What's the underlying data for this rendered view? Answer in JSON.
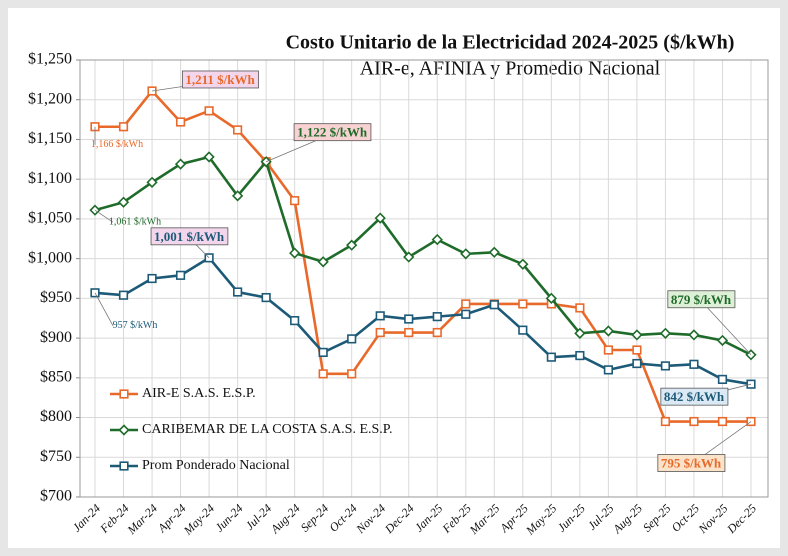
{
  "chart_data": {
    "type": "line",
    "title": "Costo Unitario de la Electricidad 2024-2025 ($/kWh)",
    "subtitle": "AIR-e, AFINIA y Promedio Nacional",
    "categories": [
      "Jan-24",
      "Feb-24",
      "Mar-24",
      "Apr-24",
      "May-24",
      "Jun-24",
      "Jul-24",
      "Aug-24",
      "Sep-24",
      "Oct-24",
      "Nov-24",
      "Dec-24",
      "Jan-25",
      "Feb-25",
      "Mar-25",
      "Apr-25",
      "May-25",
      "Jun-25",
      "Jul-25",
      "Aug-25",
      "Sep-25",
      "Oct-25",
      "Nov-25",
      "Dec-25"
    ],
    "series": [
      {
        "name": "AIR-E S.A.S. E.S.P.",
        "color": "#e8692a",
        "marker": "square",
        "values": [
          1166,
          1166,
          1211,
          1172,
          1186,
          1162,
          1122,
          1073,
          855,
          855,
          907,
          907,
          907,
          943,
          943,
          943,
          943,
          938,
          885,
          885,
          795,
          795,
          795,
          795
        ],
        "value_labels": [
          "1,166 $/kWh",
          null,
          "1,211 $/kWh",
          null,
          null,
          null,
          null,
          null,
          null,
          null,
          null,
          null,
          null,
          null,
          null,
          null,
          null,
          null,
          null,
          null,
          null,
          null,
          null,
          "795 $/kWh"
        ]
      },
      {
        "name": "CARIBEMAR DE LA COSTA S.A.S. E.S.P.",
        "color": "#1f6b2a",
        "marker": "diamond",
        "values": [
          1061,
          1071,
          1096,
          1119,
          1128,
          1079,
          1122,
          1007,
          996,
          1017,
          1051,
          1002,
          1024,
          1006,
          1008,
          993,
          950,
          906,
          909,
          904,
          906,
          904,
          897,
          879
        ],
        "value_labels": [
          "1,061 $/kWh",
          null,
          null,
          null,
          null,
          null,
          "1,122 $/kWh",
          null,
          null,
          null,
          null,
          null,
          null,
          null,
          null,
          null,
          null,
          null,
          null,
          null,
          null,
          null,
          null,
          "879 $/kWh"
        ]
      },
      {
        "name": "Prom Ponderado Nacional",
        "color": "#1d5a78",
        "marker": "square",
        "values": [
          957,
          954,
          975,
          979,
          1001,
          958,
          951,
          922,
          882,
          899,
          928,
          924,
          927,
          930,
          942,
          910,
          876,
          878,
          860,
          868,
          865,
          867,
          848,
          842
        ],
        "value_labels": [
          "957 $/kWh",
          null,
          null,
          null,
          "1,001 $/kWh",
          null,
          null,
          null,
          null,
          null,
          null,
          null,
          null,
          null,
          null,
          null,
          null,
          null,
          null,
          null,
          null,
          null,
          null,
          "842 $/kWh"
        ]
      }
    ],
    "ylim": [
      700,
      1250
    ],
    "yticks": [
      {
        "value": 700,
        "label": "$700"
      },
      {
        "value": 750,
        "label": "$750"
      },
      {
        "value": 800,
        "label": "$800"
      },
      {
        "value": 850,
        "label": "$850"
      },
      {
        "value": 900,
        "label": "$900"
      },
      {
        "value": 950,
        "label": "$950"
      },
      {
        "value": 1000,
        "label": "$1,000"
      },
      {
        "value": 1050,
        "label": "$1,050"
      },
      {
        "value": 1100,
        "label": "$1,100"
      },
      {
        "value": 1150,
        "label": "$1,150"
      },
      {
        "value": 1200,
        "label": "$1,200"
      },
      {
        "value": 1250,
        "label": "$1,250"
      }
    ],
    "grid": true,
    "legend": "lower left"
  }
}
